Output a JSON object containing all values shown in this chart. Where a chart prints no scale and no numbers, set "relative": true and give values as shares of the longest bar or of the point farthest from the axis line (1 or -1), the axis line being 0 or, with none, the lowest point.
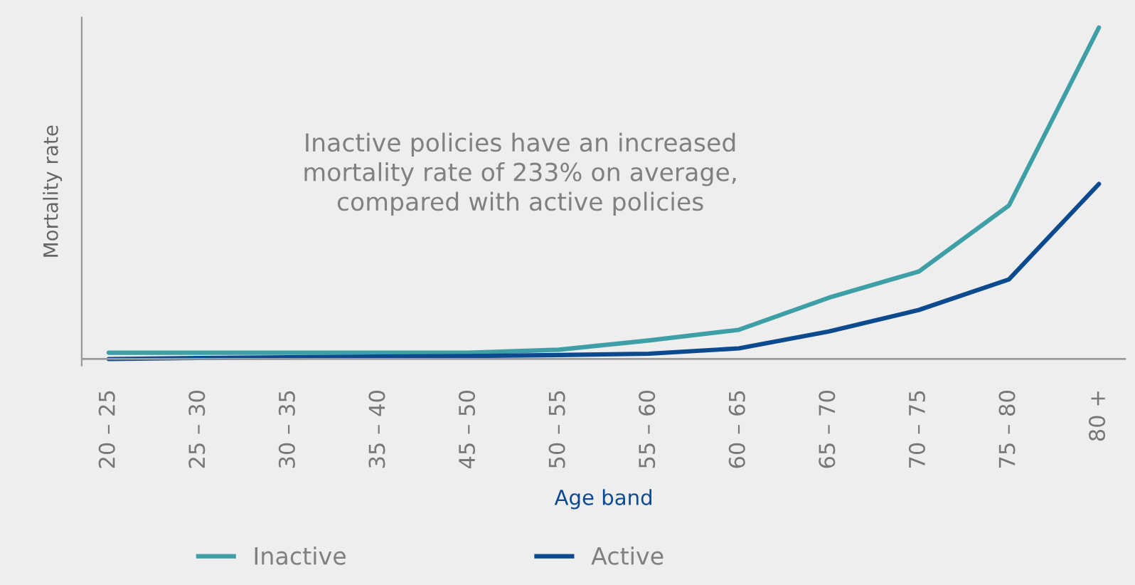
{
  "chart_data": {
    "type": "line",
    "relative": true,
    "xlabel": "Age band",
    "ylabel": "Mortality rate",
    "categories": [
      "20 – 25",
      "25 – 30",
      "30 – 35",
      "35 – 40",
      "45 – 50",
      "50 – 55",
      "55 – 60",
      "60 – 65",
      "65 – 70",
      "70 – 75",
      "75 – 80",
      "80 +"
    ],
    "series": [
      {
        "name": "Inactive",
        "color": "#3f9fa6",
        "values": [
          0.019,
          0.019,
          0.019,
          0.019,
          0.019,
          0.028,
          0.056,
          0.088,
          0.185,
          0.264,
          0.463,
          1
        ]
      },
      {
        "name": "Active",
        "color": "#0b4a8f",
        "values": [
          0,
          0.003,
          0.005,
          0.007,
          0.009,
          0.012,
          0.016,
          0.032,
          0.083,
          0.148,
          0.24,
          0.528
        ]
      }
    ],
    "annotations": [
      "Inactive policies have an increased\nmortality rate of 233% on average,\ncompared with active policies"
    ],
    "legend": "bottom",
    "grid": false,
    "marker": "none",
    "line_style": "solid"
  }
}
